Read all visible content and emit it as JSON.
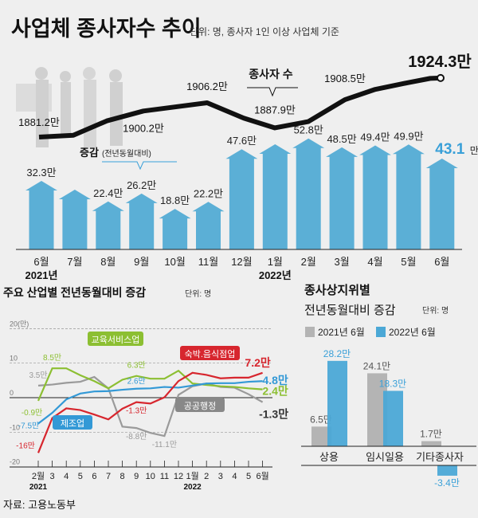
{
  "header": {
    "title": "사업체 종사자수 추이",
    "unit_note": "단위: 명, 종사자 1인 이상 사업체 기준"
  },
  "colors": {
    "bar_blue": "#5bafd6",
    "accent_blue": "#3aa0d8",
    "line_black": "#111111",
    "red": "#d7262e",
    "green": "#8cbf32",
    "gray": "#9a9a9a",
    "blue_line": "#3399d6",
    "bar_gray": "#b4b4b4"
  },
  "chart_data": [
    {
      "type": "line",
      "series_label": "종사자 수",
      "categories": [
        "6월",
        "7월",
        "8월",
        "9월",
        "10월",
        "11월",
        "12월",
        "1월",
        "2월",
        "3월",
        "4월",
        "5월",
        "6월"
      ],
      "values": [
        1881.2,
        1882.5,
        1893.0,
        1900.2,
        1906.2,
        1895.0,
        1887.9,
        1892.5,
        1908.5,
        1916.0,
        1921.0,
        1924.0,
        1924.3
      ],
      "labels": [
        "1881.2만",
        null,
        null,
        "1900.2만",
        "1906.2만",
        null,
        "1887.9만",
        null,
        "1908.5만",
        null,
        null,
        null,
        "1924.3만"
      ]
    },
    {
      "type": "bar",
      "series_label": "증감",
      "series_sublabel": "(전년동월대비)",
      "categories": [
        "6월",
        "7월",
        "8월",
        "9월",
        "10월",
        "11월",
        "12월",
        "1월",
        "2월",
        "3월",
        "4월",
        "5월",
        "6월"
      ],
      "year_labels": [
        {
          "index": 0,
          "text": "2021년"
        },
        {
          "index": 7,
          "text": "2022년"
        }
      ],
      "values": [
        32.3,
        28.1,
        22.4,
        26.2,
        18.8,
        22.2,
        47.6,
        50.0,
        52.8,
        48.5,
        49.4,
        49.9,
        43.1
      ],
      "labels": [
        "32.3만",
        null,
        "22.4만",
        "26.2만",
        "18.8만",
        "22.2만",
        "47.6만",
        null,
        "52.8만",
        "48.5만",
        "49.4만",
        "49.9만",
        "43.1"
      ],
      "last_label_suffix": "만"
    },
    {
      "type": "line",
      "title": "주요 산업별 전년동월대비 증감",
      "unit": "단위: 명",
      "ylim": [
        -20,
        20
      ],
      "yticks": [
        {
          "v": 20,
          "t": "20(만)"
        },
        {
          "v": 10,
          "t": "10"
        },
        {
          "v": 0,
          "t": "0"
        },
        {
          "v": -10,
          "t": "-10"
        },
        {
          "v": -20,
          "t": "-20"
        }
      ],
      "categories": [
        "2월",
        "3",
        "4",
        "5",
        "6",
        "7",
        "8",
        "9",
        "10",
        "11",
        "12",
        "1월",
        "2",
        "3",
        "4",
        "5",
        "6월"
      ],
      "year_labels": [
        {
          "index": 0,
          "text": "2021"
        },
        {
          "index": 11,
          "text": "2022"
        }
      ],
      "grid": "dashed",
      "series": [
        {
          "name": "공공행정",
          "color": "#9a9a9a",
          "values": [
            3.5,
            3.8,
            4.3,
            4.6,
            6.0,
            2.7,
            -8.4,
            -8.8,
            -10.2,
            -11.1,
            0.8,
            3.3,
            4.1,
            3.1,
            2.9,
            1.0,
            -1.3
          ],
          "annotations": [
            {
              "i": 0,
              "t": "3.5만"
            },
            {
              "i": 7,
              "t": "-8.8만"
            },
            {
              "i": 9,
              "t": "-11.1만"
            },
            {
              "i": 16,
              "t": "-1.3만"
            }
          ]
        },
        {
          "name": "교육서비스업",
          "color": "#8cbf32",
          "values": [
            -0.9,
            8.5,
            8.5,
            6.5,
            4.8,
            2.7,
            5.2,
            6.3,
            5.5,
            5.5,
            7.8,
            4.1,
            3.7,
            3.3,
            3.1,
            2.7,
            2.4
          ],
          "annotations": [
            {
              "i": 0,
              "t": "-0.9만"
            },
            {
              "i": 1,
              "t": "8.5만"
            },
            {
              "i": 7,
              "t": "6.3만"
            },
            {
              "i": 16,
              "t": "2.4만"
            }
          ]
        },
        {
          "name": "제조업",
          "color": "#3399d6",
          "values": [
            -7.5,
            -4.4,
            -0.5,
            1.2,
            1.8,
            1.9,
            2.3,
            2.6,
            2.7,
            3.1,
            2.9,
            3.5,
            4.1,
            4.2,
            4.2,
            4.6,
            4.8
          ],
          "annotations": [
            {
              "i": 0,
              "t": "-7.5만"
            },
            {
              "i": 7,
              "t": "2.6만"
            },
            {
              "i": 16,
              "t": "4.8만"
            }
          ]
        },
        {
          "name": "숙박.음식점업",
          "color": "#d7262e",
          "values": [
            -16,
            -5.9,
            -3.1,
            -3.6,
            -4.9,
            -6.3,
            -3.2,
            -1.3,
            -1.7,
            0.1,
            4.8,
            7.2,
            6.6,
            5.6,
            5.8,
            5.8,
            7.2
          ],
          "annotations": [
            {
              "i": 0,
              "t": "-16만"
            },
            {
              "i": 7,
              "t": "-1.3만"
            },
            {
              "i": 16,
              "t": "7.2만"
            }
          ]
        }
      ]
    },
    {
      "type": "bar",
      "title_line1": "종사상지위별",
      "title_line2": "전년동월대비 증감",
      "unit": "단위: 명",
      "categories": [
        "상용",
        "임시일용",
        "기타종사자"
      ],
      "series": [
        {
          "name": "2021년 6월",
          "color": "#b4b4b4",
          "values": [
            6.5,
            24.1,
            1.7
          ],
          "labels": [
            "6.5만",
            "24.1만",
            "1.7만"
          ]
        },
        {
          "name": "2022년 6월",
          "color": "#4ba8d6",
          "values": [
            28.2,
            18.3,
            -3.4
          ],
          "labels": [
            "28.2만",
            "18.3만",
            "-3.4만"
          ]
        }
      ]
    }
  ],
  "source": "자료: 고용노동부"
}
